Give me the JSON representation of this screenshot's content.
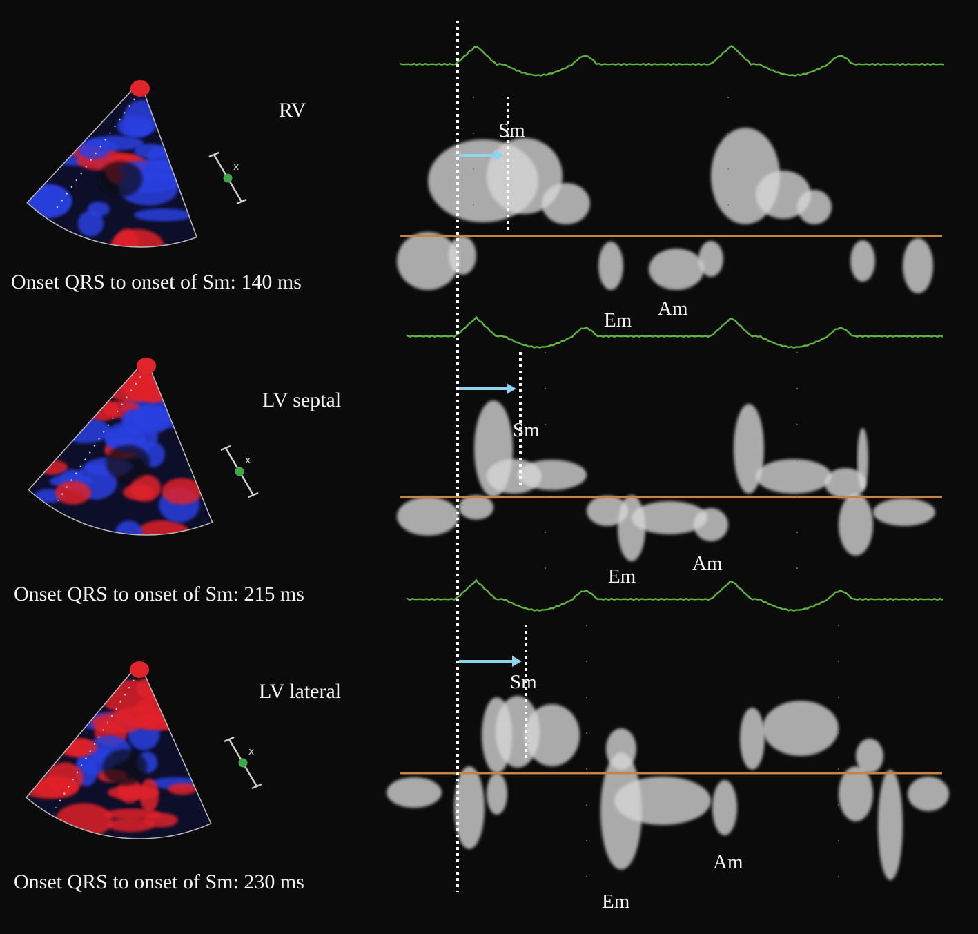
{
  "panels": [
    {
      "site": "RV",
      "onset_text": "Onset QRS to onset of Sm: 140 ms",
      "delay_ms": 140,
      "labels": {
        "sm": "Sm",
        "em": "Em",
        "am": "Am"
      }
    },
    {
      "site": "LV septal",
      "onset_text": "Onset QRS to onset of Sm: 215 ms",
      "delay_ms": 215,
      "labels": {
        "sm": "Sm",
        "em": "Em",
        "am": "Am"
      }
    },
    {
      "site": "LV lateral",
      "onset_text": "Onset QRS to onset of Sm: 230 ms",
      "delay_ms": 230,
      "labels": {
        "sm": "Sm",
        "em": "Em",
        "am": "Am"
      }
    }
  ],
  "colors": {
    "background": "#0b0b0b",
    "ecg": "#5fb63c",
    "baseline": "#c8843f",
    "arrow": "#8ed3ec",
    "doppler": "#d7d7d7",
    "echo_red": "#e0242a",
    "echo_blue": "#2b3fe0"
  },
  "icons": {
    "probe_marker": "green-dot-marker-icon",
    "arrow": "right-arrow-icon"
  }
}
